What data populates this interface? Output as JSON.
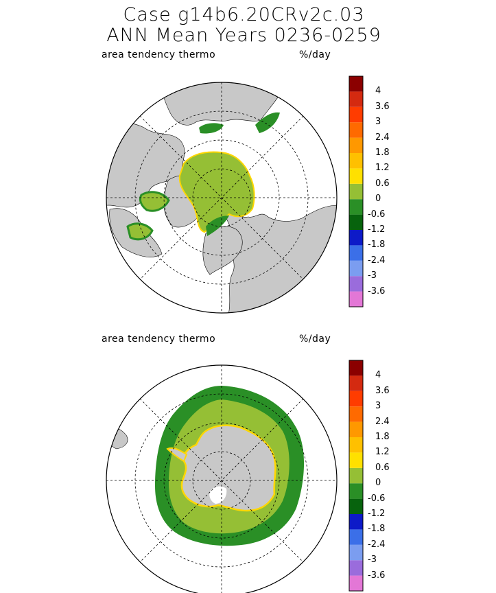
{
  "header": {
    "line1": "Case g14b6.20CRv2c.03",
    "line2": "ANN Mean     Years 0236-0259"
  },
  "panels": [
    {
      "variable": "area tendency thermo",
      "units": "%/day",
      "hemisphere": "north"
    },
    {
      "variable": "area tendency thermo",
      "units": "%/day",
      "hemisphere": "south"
    }
  ],
  "colorbar": {
    "colors": [
      "#e377d6",
      "#9a6cdc",
      "#7b9df0",
      "#3b6fe8",
      "#0d1ac8",
      "#07630d",
      "#2a8f26",
      "#95bf35",
      "#ffe000",
      "#ffc000",
      "#ff9800",
      "#ff6a00",
      "#ff3c00",
      "#d42a10",
      "#8b0000"
    ],
    "tick_labels": [
      "-3.6",
      "-3",
      "-2.4",
      "-1.8",
      "-1.2",
      "-0.6",
      "0",
      "0.6",
      "1.2",
      "1.8",
      "2.4",
      "3",
      "3.6",
      "4"
    ]
  },
  "colors": {
    "land": "#c8c8c8",
    "ocean_bg": "#ffffff",
    "ice_low": "#95bf35",
    "ice_neg": "#2a8f26",
    "ice_edge": "#ffd700"
  }
}
